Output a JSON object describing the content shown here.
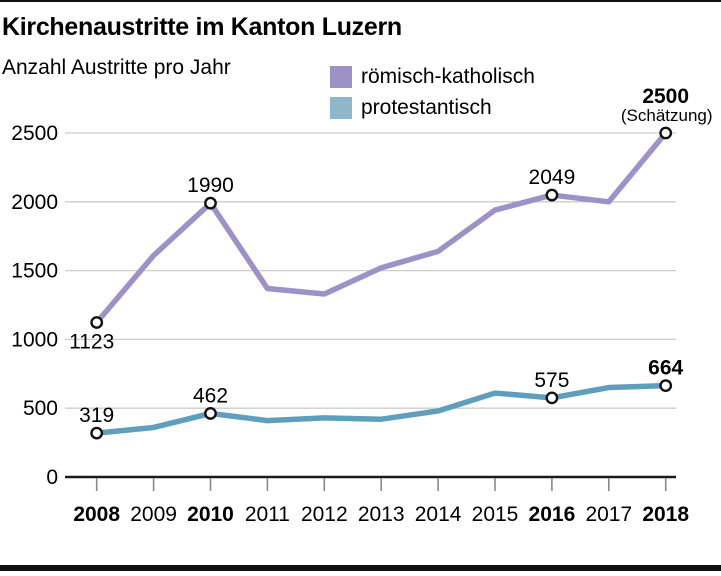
{
  "page": {
    "title": "Kirchenaustritte im Kanton Luzern",
    "subtitle": "Anzahl Austritte pro Jahr"
  },
  "legend": {
    "items": [
      {
        "label": "römisch-katholisch",
        "color": "#9d92c7"
      },
      {
        "label": "protestantisch",
        "color": "#8fb7cb"
      }
    ]
  },
  "chart_data": {
    "type": "line",
    "title": "Kirchenaustritte im Kanton Luzern",
    "subtitle": "Anzahl Austritte pro Jahr",
    "x": [
      2008,
      2009,
      2010,
      2011,
      2012,
      2013,
      2014,
      2015,
      2016,
      2017,
      2018
    ],
    "x_bold_ticks": [
      2008,
      2010,
      2016,
      2018
    ],
    "yticks": [
      0,
      500,
      1000,
      1500,
      2000,
      2500
    ],
    "ylim": [
      0,
      2500
    ],
    "grid": true,
    "legend_position": "top",
    "colors": {
      "grid": "#cdcdcd",
      "axis": "#1a1a1a",
      "tick": "#8a8a8a",
      "text": "#000000",
      "marker_fill": "#ffffff",
      "marker_stroke": "#111111"
    },
    "series": [
      {
        "name": "roemisch-katholisch",
        "display_name": "römisch-katholisch",
        "color": "#9d92c7",
        "values": [
          1123,
          1610,
          1990,
          1370,
          1330,
          1520,
          1640,
          1940,
          2049,
          2000,
          2500
        ],
        "labeled_points": [
          {
            "x": 2008,
            "label": "1123",
            "bold": false,
            "position": "below"
          },
          {
            "x": 2010,
            "label": "1990",
            "bold": false,
            "position": "above"
          },
          {
            "x": 2016,
            "label": "2049",
            "bold": false,
            "position": "above"
          },
          {
            "x": 2018,
            "label": "2500",
            "bold": true,
            "position": "above",
            "note": "(Schätzung)"
          }
        ]
      },
      {
        "name": "protestantisch",
        "display_name": "protestantisch",
        "color": "#5f9ebc",
        "values": [
          319,
          360,
          462,
          410,
          430,
          420,
          480,
          610,
          575,
          650,
          664
        ],
        "labeled_points": [
          {
            "x": 2008,
            "label": "319",
            "bold": false,
            "position": "above"
          },
          {
            "x": 2010,
            "label": "462",
            "bold": false,
            "position": "above"
          },
          {
            "x": 2016,
            "label": "575",
            "bold": false,
            "position": "above"
          },
          {
            "x": 2018,
            "label": "664",
            "bold": true,
            "position": "above"
          }
        ]
      }
    ]
  }
}
